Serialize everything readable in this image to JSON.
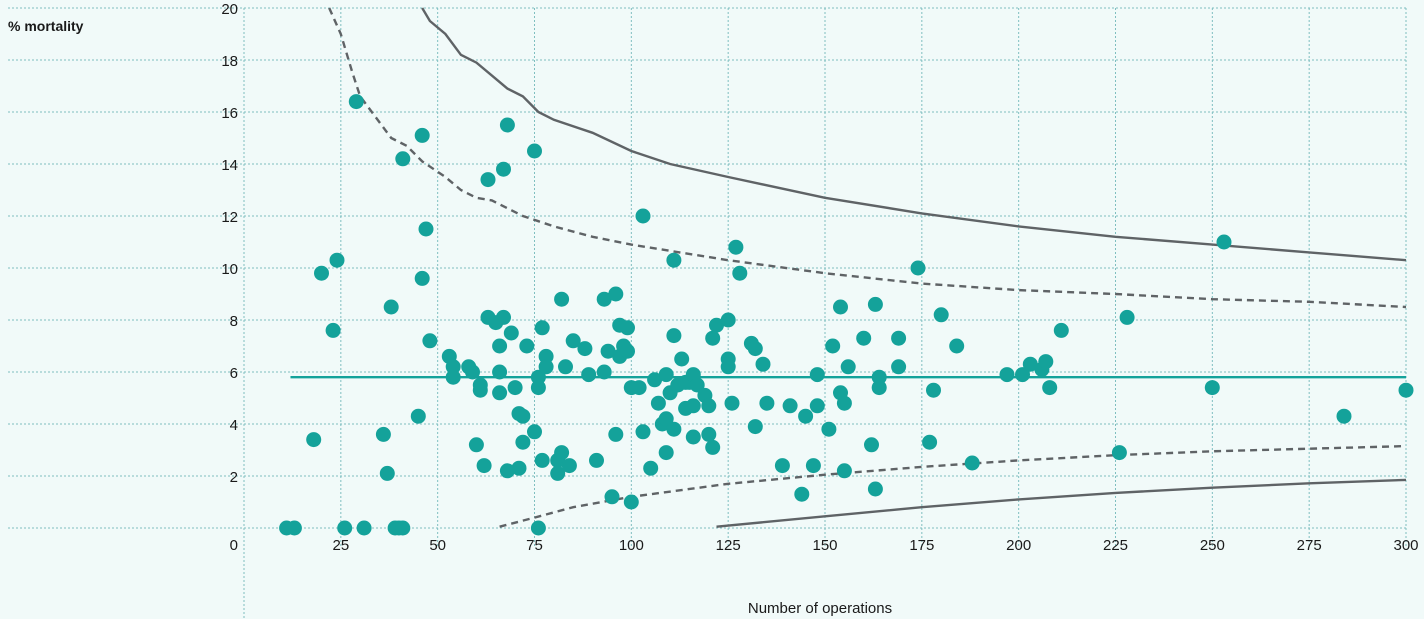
{
  "chart_data": {
    "type": "scatter",
    "title": "",
    "ylabel": "% mortality",
    "xlabel": "Number of operations",
    "xlim": [
      0,
      300
    ],
    "ylim": [
      0,
      20
    ],
    "x_ticks": [
      0,
      25,
      50,
      75,
      100,
      125,
      150,
      175,
      200,
      225,
      250,
      275,
      300
    ],
    "y_ticks": [
      0,
      2,
      4,
      6,
      8,
      10,
      12,
      14,
      16,
      18,
      20
    ],
    "grid": true,
    "colors": {
      "points": "#14a29a",
      "mean_line": "#14a29a",
      "limits": "#5f6366",
      "grid": "#7fbfc0",
      "background": "#f1faf9"
    },
    "mean_line": {
      "y": 5.8,
      "x_range": [
        12,
        300
      ]
    },
    "limit_lines": [
      {
        "style": "solid",
        "position": "upper",
        "points": [
          [
            46,
            20
          ],
          [
            48,
            19.5
          ],
          [
            52,
            19
          ],
          [
            56,
            18.2
          ],
          [
            60,
            17.9
          ],
          [
            64,
            17.4
          ],
          [
            68,
            16.9
          ],
          [
            72,
            16.6
          ],
          [
            76,
            16
          ],
          [
            80,
            15.7
          ],
          [
            90,
            15.2
          ],
          [
            100,
            14.5
          ],
          [
            110,
            14
          ],
          [
            125,
            13.5
          ],
          [
            150,
            12.7
          ],
          [
            175,
            12.1
          ],
          [
            200,
            11.6
          ],
          [
            225,
            11.2
          ],
          [
            250,
            10.9
          ],
          [
            275,
            10.6
          ],
          [
            300,
            10.3
          ]
        ]
      },
      {
        "style": "dashed",
        "position": "upper",
        "points": [
          [
            22,
            20
          ],
          [
            25,
            19
          ],
          [
            28,
            17.5
          ],
          [
            30,
            16.6
          ],
          [
            34,
            15.8
          ],
          [
            38,
            15
          ],
          [
            42,
            14.7
          ],
          [
            46,
            14.1
          ],
          [
            52,
            13.5
          ],
          [
            56,
            13
          ],
          [
            60,
            12.7
          ],
          [
            64,
            12.6
          ],
          [
            68,
            12.3
          ],
          [
            72,
            12
          ],
          [
            76,
            11.8
          ],
          [
            80,
            11.6
          ],
          [
            90,
            11.2
          ],
          [
            100,
            10.9
          ],
          [
            125,
            10.3
          ],
          [
            150,
            9.8
          ],
          [
            175,
            9.4
          ],
          [
            200,
            9.15
          ],
          [
            225,
            9
          ],
          [
            250,
            8.8
          ],
          [
            275,
            8.7
          ],
          [
            300,
            8.5
          ]
        ]
      },
      {
        "style": "dashed",
        "position": "lower",
        "points": [
          [
            66,
            0.05
          ],
          [
            75,
            0.4
          ],
          [
            85,
            0.8
          ],
          [
            100,
            1.2
          ],
          [
            125,
            1.7
          ],
          [
            150,
            2.05
          ],
          [
            175,
            2.35
          ],
          [
            200,
            2.6
          ],
          [
            225,
            2.8
          ],
          [
            250,
            2.95
          ],
          [
            275,
            3.05
          ],
          [
            300,
            3.15
          ]
        ]
      },
      {
        "style": "solid",
        "position": "lower",
        "points": [
          [
            122,
            0.05
          ],
          [
            150,
            0.45
          ],
          [
            175,
            0.8
          ],
          [
            200,
            1.1
          ],
          [
            225,
            1.35
          ],
          [
            250,
            1.55
          ],
          [
            275,
            1.72
          ],
          [
            300,
            1.85
          ]
        ]
      }
    ],
    "points": [
      [
        11,
        0
      ],
      [
        13,
        0
      ],
      [
        26,
        0
      ],
      [
        31,
        0
      ],
      [
        39,
        0
      ],
      [
        40,
        0
      ],
      [
        41,
        0
      ],
      [
        76,
        0
      ],
      [
        18,
        3.4
      ],
      [
        20,
        9.8
      ],
      [
        23,
        7.6
      ],
      [
        24,
        10.3
      ],
      [
        29,
        16.4
      ],
      [
        36,
        3.6
      ],
      [
        37,
        2.1
      ],
      [
        38,
        8.5
      ],
      [
        41,
        14.2
      ],
      [
        45,
        4.3
      ],
      [
        46,
        9.6
      ],
      [
        46,
        15.1
      ],
      [
        47,
        11.5
      ],
      [
        48,
        7.2
      ],
      [
        53,
        6.6
      ],
      [
        54,
        6.2
      ],
      [
        54,
        5.8
      ],
      [
        58,
        6.2
      ],
      [
        59,
        6.0
      ],
      [
        60,
        3.2
      ],
      [
        61,
        5.3
      ],
      [
        61,
        5.5
      ],
      [
        62,
        2.4
      ],
      [
        63,
        13.4
      ],
      [
        63,
        8.1
      ],
      [
        65,
        7.9
      ],
      [
        66,
        7.0
      ],
      [
        66,
        6.0
      ],
      [
        66,
        5.2
      ],
      [
        67,
        13.8
      ],
      [
        67,
        8.1
      ],
      [
        68,
        2.2
      ],
      [
        68,
        15.5
      ],
      [
        69,
        7.5
      ],
      [
        70,
        5.4
      ],
      [
        71,
        4.4
      ],
      [
        71,
        2.3
      ],
      [
        72,
        3.3
      ],
      [
        72,
        4.3
      ],
      [
        73,
        7.0
      ],
      [
        75,
        14.5
      ],
      [
        75,
        3.7
      ],
      [
        76,
        5.8
      ],
      [
        76,
        5.4
      ],
      [
        77,
        2.6
      ],
      [
        77,
        7.7
      ],
      [
        78,
        6.6
      ],
      [
        78,
        6.2
      ],
      [
        81,
        2.6
      ],
      [
        81,
        2.1
      ],
      [
        82,
        2.9
      ],
      [
        82,
        8.8
      ],
      [
        83,
        6.2
      ],
      [
        84,
        2.4
      ],
      [
        85,
        7.2
      ],
      [
        88,
        6.9
      ],
      [
        89,
        5.9
      ],
      [
        91,
        2.6
      ],
      [
        93,
        6.0
      ],
      [
        93,
        8.8
      ],
      [
        94,
        6.8
      ],
      [
        95,
        1.2
      ],
      [
        96,
        9.0
      ],
      [
        96,
        3.6
      ],
      [
        97,
        6.6
      ],
      [
        97,
        7.8
      ],
      [
        98,
        7.0
      ],
      [
        99,
        6.8
      ],
      [
        99,
        7.7
      ],
      [
        100,
        5.4
      ],
      [
        100,
        1.0
      ],
      [
        102,
        5.4
      ],
      [
        103,
        3.7
      ],
      [
        103,
        12.0
      ],
      [
        105,
        2.3
      ],
      [
        106,
        5.7
      ],
      [
        107,
        4.8
      ],
      [
        108,
        4.0
      ],
      [
        109,
        5.9
      ],
      [
        109,
        4.2
      ],
      [
        109,
        2.9
      ],
      [
        110,
        5.2
      ],
      [
        111,
        7.4
      ],
      [
        111,
        10.3
      ],
      [
        111,
        3.8
      ],
      [
        112,
        5.5
      ],
      [
        113,
        6.5
      ],
      [
        114,
        4.6
      ],
      [
        114,
        5.6
      ],
      [
        115,
        5.6
      ],
      [
        116,
        4.7
      ],
      [
        116,
        5.9
      ],
      [
        116,
        3.5
      ],
      [
        117,
        5.5
      ],
      [
        119,
        5.1
      ],
      [
        120,
        4.7
      ],
      [
        120,
        3.6
      ],
      [
        121,
        3.1
      ],
      [
        121,
        7.3
      ],
      [
        122,
        7.8
      ],
      [
        125,
        8.0
      ],
      [
        125,
        6.5
      ],
      [
        125,
        6.2
      ],
      [
        126,
        4.8
      ],
      [
        127,
        10.8
      ],
      [
        128,
        9.8
      ],
      [
        131,
        7.1
      ],
      [
        132,
        6.9
      ],
      [
        132,
        3.9
      ],
      [
        134,
        6.3
      ],
      [
        135,
        4.8
      ],
      [
        139,
        2.4
      ],
      [
        141,
        4.7
      ],
      [
        144,
        1.3
      ],
      [
        145,
        4.3
      ],
      [
        147,
        2.4
      ],
      [
        148,
        4.7
      ],
      [
        148,
        5.9
      ],
      [
        151,
        3.8
      ],
      [
        152,
        7.0
      ],
      [
        154,
        5.2
      ],
      [
        154,
        8.5
      ],
      [
        155,
        2.2
      ],
      [
        155,
        4.8
      ],
      [
        156,
        6.2
      ],
      [
        160,
        7.3
      ],
      [
        162,
        3.2
      ],
      [
        163,
        8.6
      ],
      [
        163,
        1.5
      ],
      [
        164,
        5.4
      ],
      [
        164,
        5.8
      ],
      [
        169,
        6.2
      ],
      [
        169,
        7.3
      ],
      [
        174,
        10.0
      ],
      [
        177,
        3.3
      ],
      [
        178,
        5.3
      ],
      [
        180,
        8.2
      ],
      [
        184,
        7.0
      ],
      [
        188,
        2.5
      ],
      [
        197,
        5.9
      ],
      [
        201,
        5.9
      ],
      [
        203,
        6.3
      ],
      [
        206,
        6.1
      ],
      [
        207,
        6.4
      ],
      [
        208,
        5.4
      ],
      [
        211,
        7.6
      ],
      [
        226,
        2.9
      ],
      [
        228,
        8.1
      ],
      [
        250,
        5.4
      ],
      [
        253,
        11.0
      ],
      [
        284,
        4.3
      ],
      [
        300,
        5.3
      ]
    ]
  }
}
